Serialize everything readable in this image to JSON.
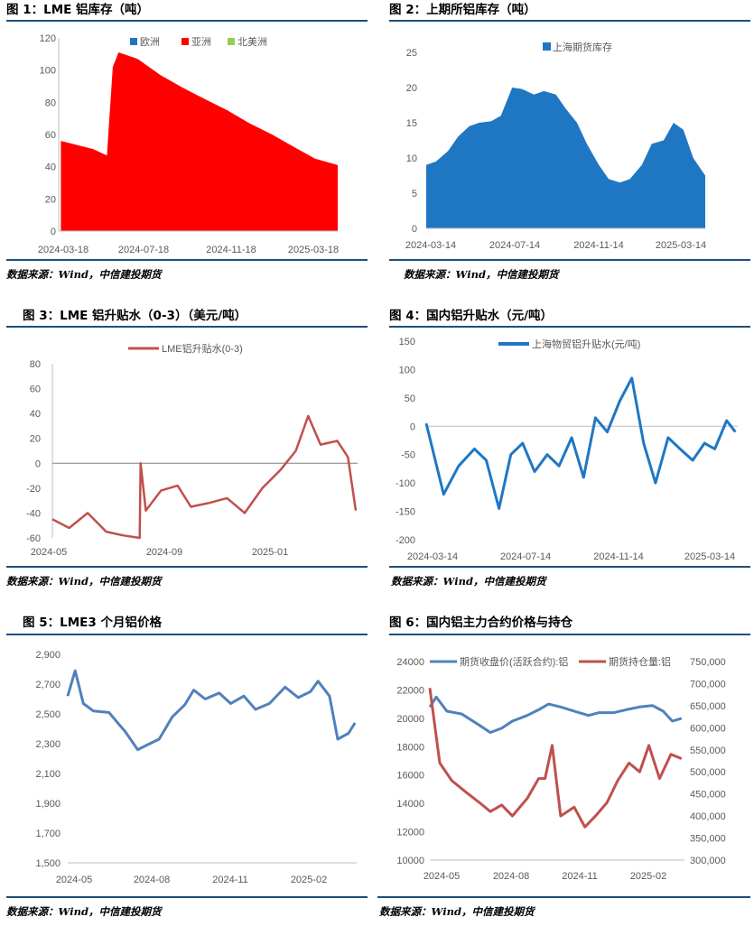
{
  "panels": [
    {
      "title": "图 1：LME 铝库存（吨）",
      "source": "数据来源：Wind，中信建投期货"
    },
    {
      "title": "图 2：上期所铝库存（吨）",
      "source": "数据来源：Wind，中信建投期货"
    },
    {
      "title": "图 3：LME 铝升贴水（0-3）（美元/吨）",
      "source": "数据来源：Wind，中信建投期货"
    },
    {
      "title": "图 4：国内铝升贴水（元/吨）",
      "source": "数据来源：Wind，中信建投期货"
    },
    {
      "title": "图 5：LME3 个月铝价格",
      "source": "数据来源：Wind，中信建投期货"
    },
    {
      "title": "图 6：国内铝主力合约价格与持仓",
      "source": "数据来源：Wind，中信建投期货"
    }
  ],
  "colors": {
    "red": "#ff0000",
    "blue": "#1f77c4",
    "maroon": "#c0504d",
    "steel": "#4f81bd",
    "green": "#92d050",
    "rule": "#1f4e79"
  },
  "chart_data": [
    {
      "type": "area",
      "legend": [
        "欧洲",
        "亚洲",
        "北美洲"
      ],
      "legend_colors": [
        "#1f77c4",
        "#ff0000",
        "#92d050"
      ],
      "xticks": [
        "2024-03-18",
        "2024-07-18",
        "2024-11-18",
        "2025-03-18"
      ],
      "ylim": [
        0,
        120
      ],
      "yticks": [
        "0",
        "20",
        "40",
        "60",
        "80",
        "100",
        "120"
      ],
      "series": [
        {
          "name": "亚洲",
          "x": [
            "2024-03-18",
            "2024-05-01",
            "2024-05-15",
            "2024-05-20",
            "2024-05-28",
            "2024-06-05",
            "2024-07-01",
            "2024-08-01",
            "2024-09-01",
            "2024-10-01",
            "2024-11-01",
            "2024-12-01",
            "2025-01-01",
            "2025-02-01",
            "2025-03-01",
            "2025-04-01"
          ],
          "values": [
            56,
            51,
            48,
            47,
            102,
            111,
            107,
            97,
            89,
            82,
            75,
            67,
            60,
            52,
            45,
            41
          ]
        }
      ]
    },
    {
      "type": "area",
      "legend": [
        "上海期货库存"
      ],
      "xticks": [
        "2024-03-14",
        "2024-07-14",
        "2024-11-14",
        "2025-03-14"
      ],
      "ylim": [
        0,
        25
      ],
      "yticks": [
        "0",
        "5",
        "10",
        "15",
        "20",
        "25"
      ],
      "series": [
        {
          "name": "上海期货库存",
          "x": [
            "2024-03-01",
            "2024-03-15",
            "2024-04-01",
            "2024-04-15",
            "2024-05-01",
            "2024-05-15",
            "2024-06-01",
            "2024-06-15",
            "2024-07-01",
            "2024-07-15",
            "2024-08-01",
            "2024-08-15",
            "2024-09-01",
            "2024-09-15",
            "2024-10-01",
            "2024-10-15",
            "2024-11-01",
            "2024-11-15",
            "2024-12-01",
            "2024-12-15",
            "2025-01-01",
            "2025-01-15",
            "2025-02-01",
            "2025-02-15",
            "2025-03-01",
            "2025-03-15",
            "2025-04-01"
          ],
          "values": [
            9,
            9.5,
            11,
            13,
            14.5,
            15,
            15.2,
            16,
            20,
            19.8,
            19,
            19.5,
            19,
            17,
            15,
            12,
            9,
            7,
            6.5,
            7,
            9,
            12,
            12.5,
            15,
            14,
            10,
            7.5
          ]
        }
      ]
    },
    {
      "type": "line",
      "legend": [
        "LME铝升贴水(0-3)"
      ],
      "xticks": [
        "2024-05",
        "2024-09",
        "2025-01"
      ],
      "ylim": [
        -60,
        80
      ],
      "yticks": [
        "-60",
        "-40",
        "-20",
        "0",
        "20",
        "40",
        "60",
        "80"
      ],
      "series": [
        {
          "name": "LME铝升贴水(0-3)",
          "x": [
            "2024-05-01",
            "2024-05-20",
            "2024-06-10",
            "2024-07-01",
            "2024-07-20",
            "2024-08-08",
            "2024-08-09",
            "2024-08-15",
            "2024-09-01",
            "2024-09-20",
            "2024-10-05",
            "2024-10-25",
            "2024-11-15",
            "2024-12-05",
            "2024-12-25",
            "2025-01-15",
            "2025-02-01",
            "2025-02-15",
            "2025-03-01",
            "2025-03-20",
            "2025-04-01",
            "2025-04-10"
          ],
          "values": [
            -45,
            -52,
            -40,
            -55,
            -58,
            -60,
            0,
            -38,
            -22,
            -18,
            -35,
            -32,
            -28,
            -40,
            -20,
            -5,
            10,
            38,
            15,
            18,
            5,
            -38
          ]
        }
      ]
    },
    {
      "type": "line",
      "legend": [
        "上海物贸铝升贴水(元/吨)"
      ],
      "xticks": [
        "2024-03-14",
        "2024-07-14",
        "2024-11-14",
        "2025-03-14"
      ],
      "ylim": [
        -200,
        150
      ],
      "yticks": [
        "-200",
        "-150",
        "-100",
        "-50",
        "0",
        "50",
        "100",
        "150"
      ],
      "series": [
        {
          "name": "上海物贸铝升贴水(元/吨)",
          "x": [
            "2024-03-10",
            "2024-04-01",
            "2024-04-20",
            "2024-05-10",
            "2024-05-25",
            "2024-06-10",
            "2024-06-25",
            "2024-07-10",
            "2024-07-25",
            "2024-08-10",
            "2024-08-25",
            "2024-09-10",
            "2024-09-25",
            "2024-10-10",
            "2024-10-25",
            "2024-11-10",
            "2024-11-25",
            "2024-12-10",
            "2024-12-25",
            "2025-01-10",
            "2025-01-25",
            "2025-02-10",
            "2025-02-25",
            "2025-03-10",
            "2025-03-25",
            "2025-04-05"
          ],
          "values": [
            5,
            -120,
            -70,
            -40,
            -60,
            -145,
            -50,
            -30,
            -80,
            -50,
            -70,
            -20,
            -90,
            15,
            -10,
            45,
            85,
            -30,
            -100,
            -20,
            -40,
            -60,
            -30,
            -40,
            10,
            -10
          ]
        }
      ]
    },
    {
      "type": "line",
      "xticks": [
        "2024-05",
        "2024-08",
        "2024-11",
        "2025-02"
      ],
      "ylim": [
        1500,
        2900
      ],
      "yticks": [
        "1,500",
        "1,700",
        "1,900",
        "2,100",
        "2,300",
        "2,500",
        "2,700",
        "2,900"
      ],
      "series": [
        {
          "x": [
            "2024-05-01",
            "2024-05-10",
            "2024-05-20",
            "2024-06-01",
            "2024-06-20",
            "2024-07-10",
            "2024-07-25",
            "2024-08-05",
            "2024-08-20",
            "2024-09-05",
            "2024-09-20",
            "2024-10-01",
            "2024-10-15",
            "2024-11-01",
            "2024-11-15",
            "2024-12-01",
            "2024-12-15",
            "2025-01-01",
            "2025-01-20",
            "2025-02-05",
            "2025-02-20",
            "2025-03-01",
            "2025-03-15",
            "2025-03-25",
            "2025-04-07",
            "2025-04-15"
          ],
          "values": [
            2620,
            2790,
            2570,
            2520,
            2510,
            2380,
            2260,
            2290,
            2330,
            2480,
            2560,
            2660,
            2600,
            2640,
            2570,
            2620,
            2530,
            2570,
            2680,
            2610,
            2650,
            2720,
            2620,
            2330,
            2370,
            2440
          ]
        }
      ]
    },
    {
      "type": "line",
      "legend": [
        "期货收盘价(活跃合约):铝",
        "期货持仓量:铝"
      ],
      "xticks": [
        "2024-05",
        "2024-08",
        "2024-11",
        "2025-02"
      ],
      "ylim_left": [
        10000,
        24000
      ],
      "ylim_right": [
        300000,
        750000
      ],
      "yticks_left": [
        "10000",
        "12000",
        "14000",
        "16000",
        "18000",
        "20000",
        "22000",
        "24000"
      ],
      "yticks_right": [
        "300,000",
        "350,000",
        "400,000",
        "450,000",
        "500,000",
        "550,000",
        "600,000",
        "650,000",
        "700,000",
        "750,000"
      ],
      "series": [
        {
          "name": "期货收盘价(活跃合约):铝",
          "axis": "left",
          "x": [
            "2024-05-01",
            "2024-05-10",
            "2024-05-25",
            "2024-06-15",
            "2024-07-10",
            "2024-07-25",
            "2024-08-10",
            "2024-08-25",
            "2024-09-15",
            "2024-10-01",
            "2024-10-15",
            "2024-11-01",
            "2024-11-20",
            "2024-12-10",
            "2024-12-25",
            "2025-01-15",
            "2025-02-01",
            "2025-02-20",
            "2025-03-10",
            "2025-03-25",
            "2025-04-07",
            "2025-04-20"
          ],
          "values": [
            20800,
            21500,
            20500,
            20300,
            19500,
            19000,
            19300,
            19800,
            20200,
            20600,
            21000,
            20800,
            20500,
            20200,
            20400,
            20400,
            20600,
            20800,
            20900,
            20500,
            19800,
            20000
          ]
        },
        {
          "name": "期货持仓量:铝",
          "axis": "right",
          "x": [
            "2024-05-01",
            "2024-05-15",
            "2024-06-01",
            "2024-06-20",
            "2024-07-10",
            "2024-07-25",
            "2024-08-10",
            "2024-08-25",
            "2024-09-15",
            "2024-10-01",
            "2024-10-10",
            "2024-10-20",
            "2024-11-01",
            "2024-11-20",
            "2024-12-05",
            "2024-12-20",
            "2025-01-05",
            "2025-01-20",
            "2025-02-05",
            "2025-02-20",
            "2025-03-05",
            "2025-03-20",
            "2025-04-05",
            "2025-04-20"
          ],
          "values": [
            690000,
            520000,
            480000,
            455000,
            430000,
            410000,
            425000,
            400000,
            440000,
            485000,
            485000,
            560000,
            400000,
            420000,
            375000,
            400000,
            430000,
            480000,
            520000,
            500000,
            560000,
            485000,
            540000,
            530000
          ]
        }
      ]
    }
  ]
}
